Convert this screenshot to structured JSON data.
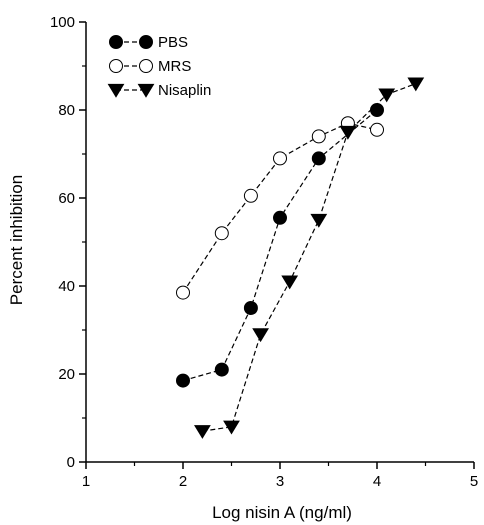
{
  "chart_data": {
    "type": "scatter",
    "xlabel": "Log nisin A (ng/ml)",
    "ylabel": "Percent inhibition",
    "xlim": [
      1,
      5
    ],
    "ylim": [
      0,
      100
    ],
    "xticks": [
      1,
      2,
      3,
      4,
      5
    ],
    "yticks": [
      0,
      20,
      40,
      60,
      80,
      100
    ],
    "grid": false,
    "legend_position": "top-left",
    "series": [
      {
        "name": "PBS",
        "marker": "filled-circle",
        "line": "dashed",
        "x": [
          2.0,
          2.4,
          2.7,
          3.0,
          3.4,
          4.0
        ],
        "y": [
          18.5,
          21,
          35,
          55.5,
          69,
          80
        ]
      },
      {
        "name": "MRS",
        "marker": "open-circle",
        "line": "dashed",
        "x": [
          2.0,
          2.4,
          2.7,
          3.0,
          3.4,
          3.7,
          4.0
        ],
        "y": [
          38.5,
          52,
          60.5,
          69,
          74,
          77,
          75.5
        ]
      },
      {
        "name": "Nisaplin",
        "marker": "filled-triangle-down",
        "line": "dashed",
        "x": [
          2.2,
          2.5,
          2.8,
          3.1,
          3.4,
          3.7,
          4.1,
          4.4
        ],
        "y": [
          7,
          8,
          29,
          41,
          55,
          75,
          83.5,
          86
        ]
      }
    ]
  }
}
